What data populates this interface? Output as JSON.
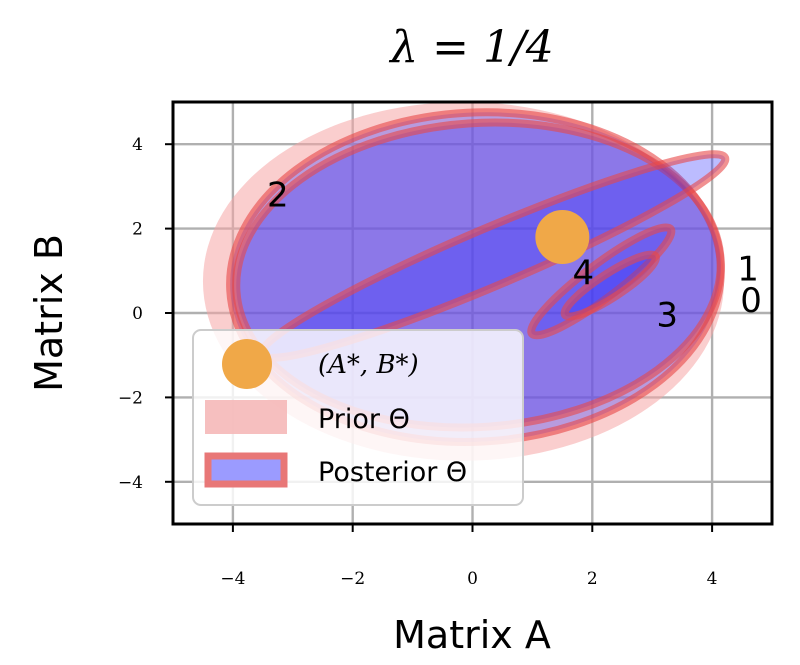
{
  "chart_data": {
    "type": "scatter",
    "title": "λ = 1/4",
    "xlabel": "Matrix A",
    "ylabel": "Matrix B",
    "xlim": [
      -5,
      5
    ],
    "ylim": [
      -5,
      5
    ],
    "xticks": [
      -4,
      -2,
      0,
      2,
      4
    ],
    "yticks": [
      -4,
      -2,
      0,
      2,
      4
    ],
    "xtick_labels": [
      "−4",
      "−2",
      "0",
      "2",
      "4"
    ],
    "ytick_labels": [
      "−4",
      "−2",
      "0",
      "2",
      "4"
    ],
    "grid": true,
    "legend_position": "lower-left",
    "legend": [
      {
        "label": "(A*, B*)",
        "kind": "marker",
        "color": "#f0a848"
      },
      {
        "label": "Prior Θ",
        "kind": "patch",
        "color": "#f5b8b8"
      },
      {
        "label": "Posterior Θ",
        "kind": "patch",
        "color": "#9b9bff",
        "edge": "#e87777"
      }
    ],
    "true_parameter": {
      "x": 1.5,
      "y": 1.8
    },
    "prior": {
      "cx": -0.15,
      "cy": 0.75,
      "rx": 4.35,
      "ry": 4.25
    },
    "posteriors": [
      {
        "step": "0",
        "cx": 0.05,
        "cy": 0.85,
        "rx": 4.1,
        "ry": 3.9,
        "angle": -3
      },
      {
        "step": "1",
        "cx": 0.1,
        "cy": 0.9,
        "rx": 4.05,
        "ry": 3.6,
        "angle": -4
      },
      {
        "step": "2",
        "cx": 0.35,
        "cy": 1.35,
        "rx": 4.2,
        "ry": 0.68,
        "angle": -23
      },
      {
        "step": "3",
        "cx": 2.15,
        "cy": 0.75,
        "rx": 1.45,
        "ry": 0.4,
        "angle": -37
      },
      {
        "step": "4",
        "cx": 2.3,
        "cy": 0.65,
        "rx": 0.9,
        "ry": 0.28,
        "angle": -33
      }
    ],
    "step_labels": [
      {
        "text": "0",
        "x": 4.65,
        "y": 0.25
      },
      {
        "text": "1",
        "x": 4.6,
        "y": 1.0
      },
      {
        "text": "2",
        "x": -3.25,
        "y": 2.75
      },
      {
        "text": "3",
        "x": 3.25,
        "y": -0.1
      },
      {
        "text": "4",
        "x": 1.85,
        "y": 0.9
      }
    ]
  }
}
